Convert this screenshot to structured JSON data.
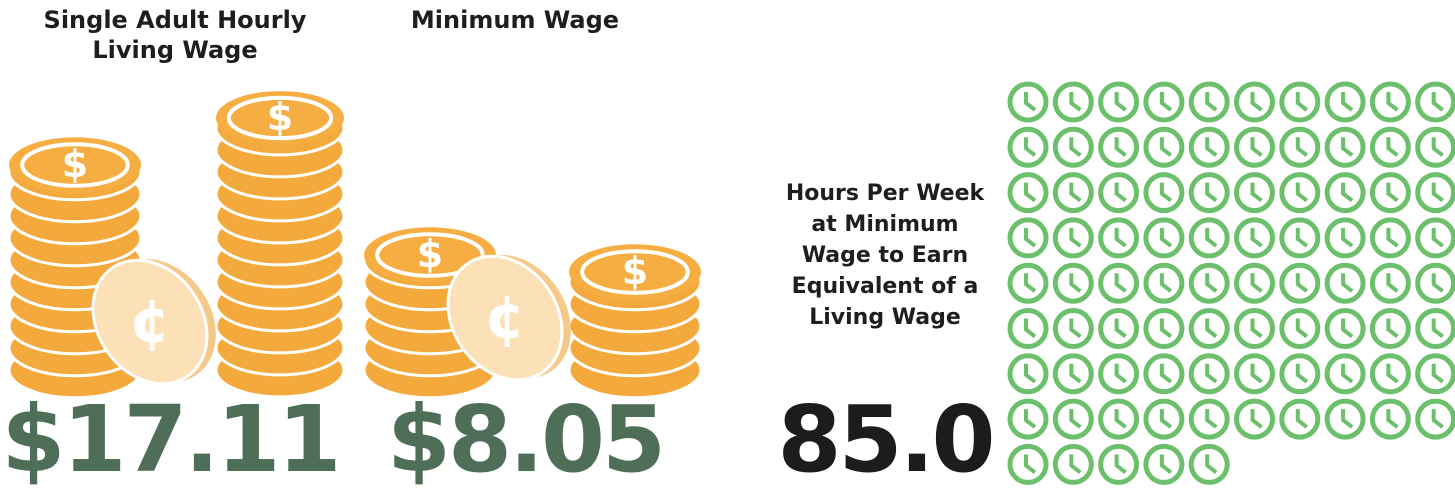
{
  "living_wage": {
    "heading": "Single Adult Hourly Living Wage",
    "value": "$17.11"
  },
  "minimum_wage": {
    "heading": "Minimum Wage",
    "value": "$8.05"
  },
  "hours": {
    "heading": "Hours Per Week at Minimum Wage to Earn Equivalent of a Living Wage",
    "value": "85.0",
    "count": 85
  }
}
